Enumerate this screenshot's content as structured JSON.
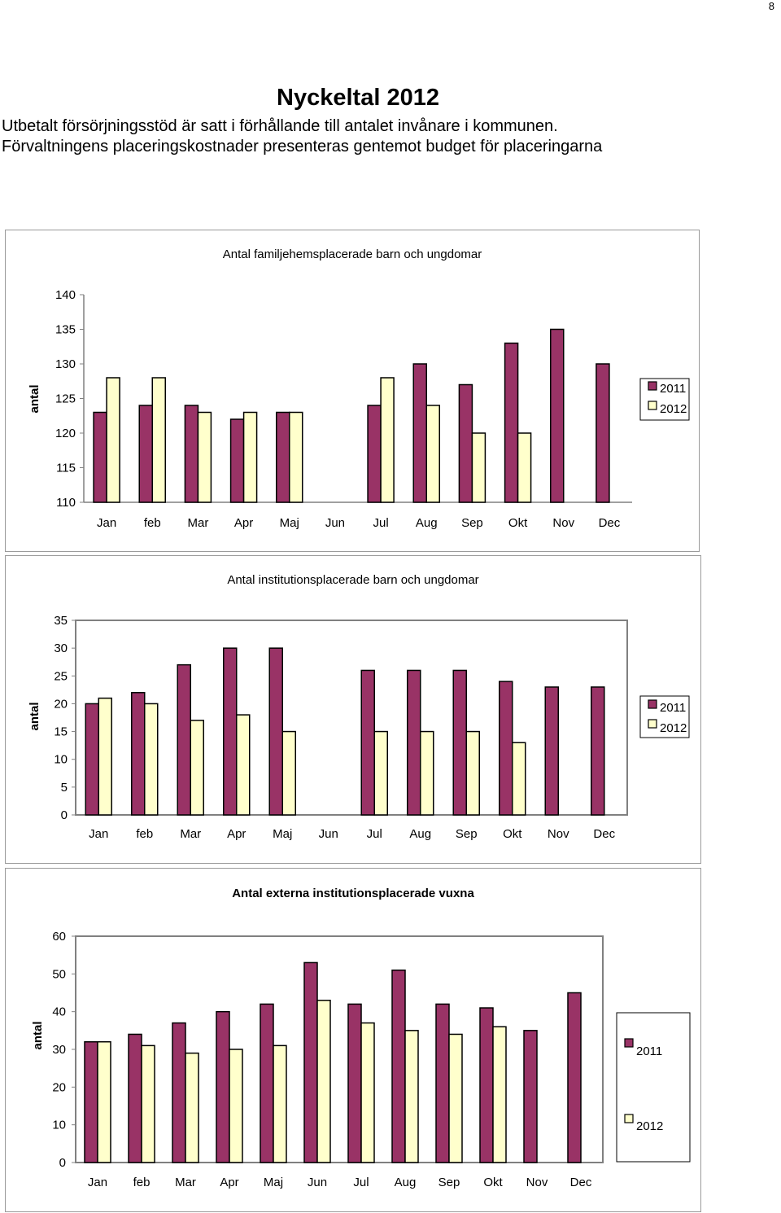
{
  "page_number": "8",
  "title": "Nyckeltal 2012",
  "intro_lines": [
    "Utbetalt försörjningsstöd är satt i förhållande till antalet invånare i kommunen.",
    "Förvaltningens placeringskostnader presenteras gentemot budget för placeringarna"
  ],
  "colors": {
    "series_2011": "#993366",
    "series_2012": "#FFFFCC",
    "bar_border": "#000000",
    "frame": "#808080"
  },
  "chart_data": [
    {
      "type": "bar",
      "title": "Antal familjehemsplacerade barn och ungdomar",
      "ylabel": "antal",
      "xlabel": "",
      "categories": [
        "Jan",
        "feb",
        "Mar",
        "Apr",
        "Maj",
        "Jun",
        "Jul",
        "Aug",
        "Sep",
        "Okt",
        "Nov",
        "Dec"
      ],
      "ylim": [
        110,
        140
      ],
      "yticks": [
        "140",
        "135",
        "130",
        "125",
        "120",
        "115",
        "110"
      ],
      "grid": false,
      "legend_position": "right",
      "series": [
        {
          "name": "2011",
          "values": [
            123,
            124,
            124,
            122,
            123,
            null,
            124,
            130,
            127,
            133,
            135,
            130
          ]
        },
        {
          "name": "2012",
          "values": [
            128,
            128,
            123,
            123,
            123,
            null,
            128,
            124,
            120,
            120,
            null,
            null
          ]
        }
      ]
    },
    {
      "type": "bar",
      "title": "Antal institutionsplacerade barn och ungdomar",
      "ylabel": "antal",
      "xlabel": "",
      "categories": [
        "Jan",
        "feb",
        "Mar",
        "Apr",
        "Maj",
        "Jun",
        "Jul",
        "Aug",
        "Sep",
        "Okt",
        "Nov",
        "Dec"
      ],
      "ylim": [
        0,
        35
      ],
      "yticks": [
        "35",
        "30",
        "25",
        "20",
        "15",
        "10",
        "5",
        "0"
      ],
      "grid": false,
      "legend_position": "right",
      "series": [
        {
          "name": "2011",
          "values": [
            20,
            22,
            27,
            30,
            30,
            null,
            26,
            26,
            26,
            24,
            23,
            23
          ]
        },
        {
          "name": "2012",
          "values": [
            21,
            20,
            17,
            18,
            15,
            null,
            15,
            15,
            15,
            13,
            null,
            null
          ]
        }
      ]
    },
    {
      "type": "bar",
      "title": "Antal externa institutionsplacerade vuxna",
      "ylabel": "antal",
      "xlabel": "",
      "categories": [
        "Jan",
        "feb",
        "Mar",
        "Apr",
        "Maj",
        "Jun",
        "Jul",
        "Aug",
        "Sep",
        "Okt",
        "Nov",
        "Dec"
      ],
      "ylim": [
        0,
        60
      ],
      "yticks": [
        "60",
        "50",
        "40",
        "30",
        "20",
        "10",
        "0"
      ],
      "grid": false,
      "legend_position": "right",
      "series": [
        {
          "name": "2011",
          "values": [
            32,
            34,
            37,
            40,
            42,
            53,
            42,
            51,
            42,
            41,
            35,
            45
          ]
        },
        {
          "name": "2012",
          "values": [
            32,
            31,
            29,
            30,
            31,
            43,
            37,
            35,
            34,
            36,
            null,
            null
          ]
        }
      ]
    }
  ]
}
